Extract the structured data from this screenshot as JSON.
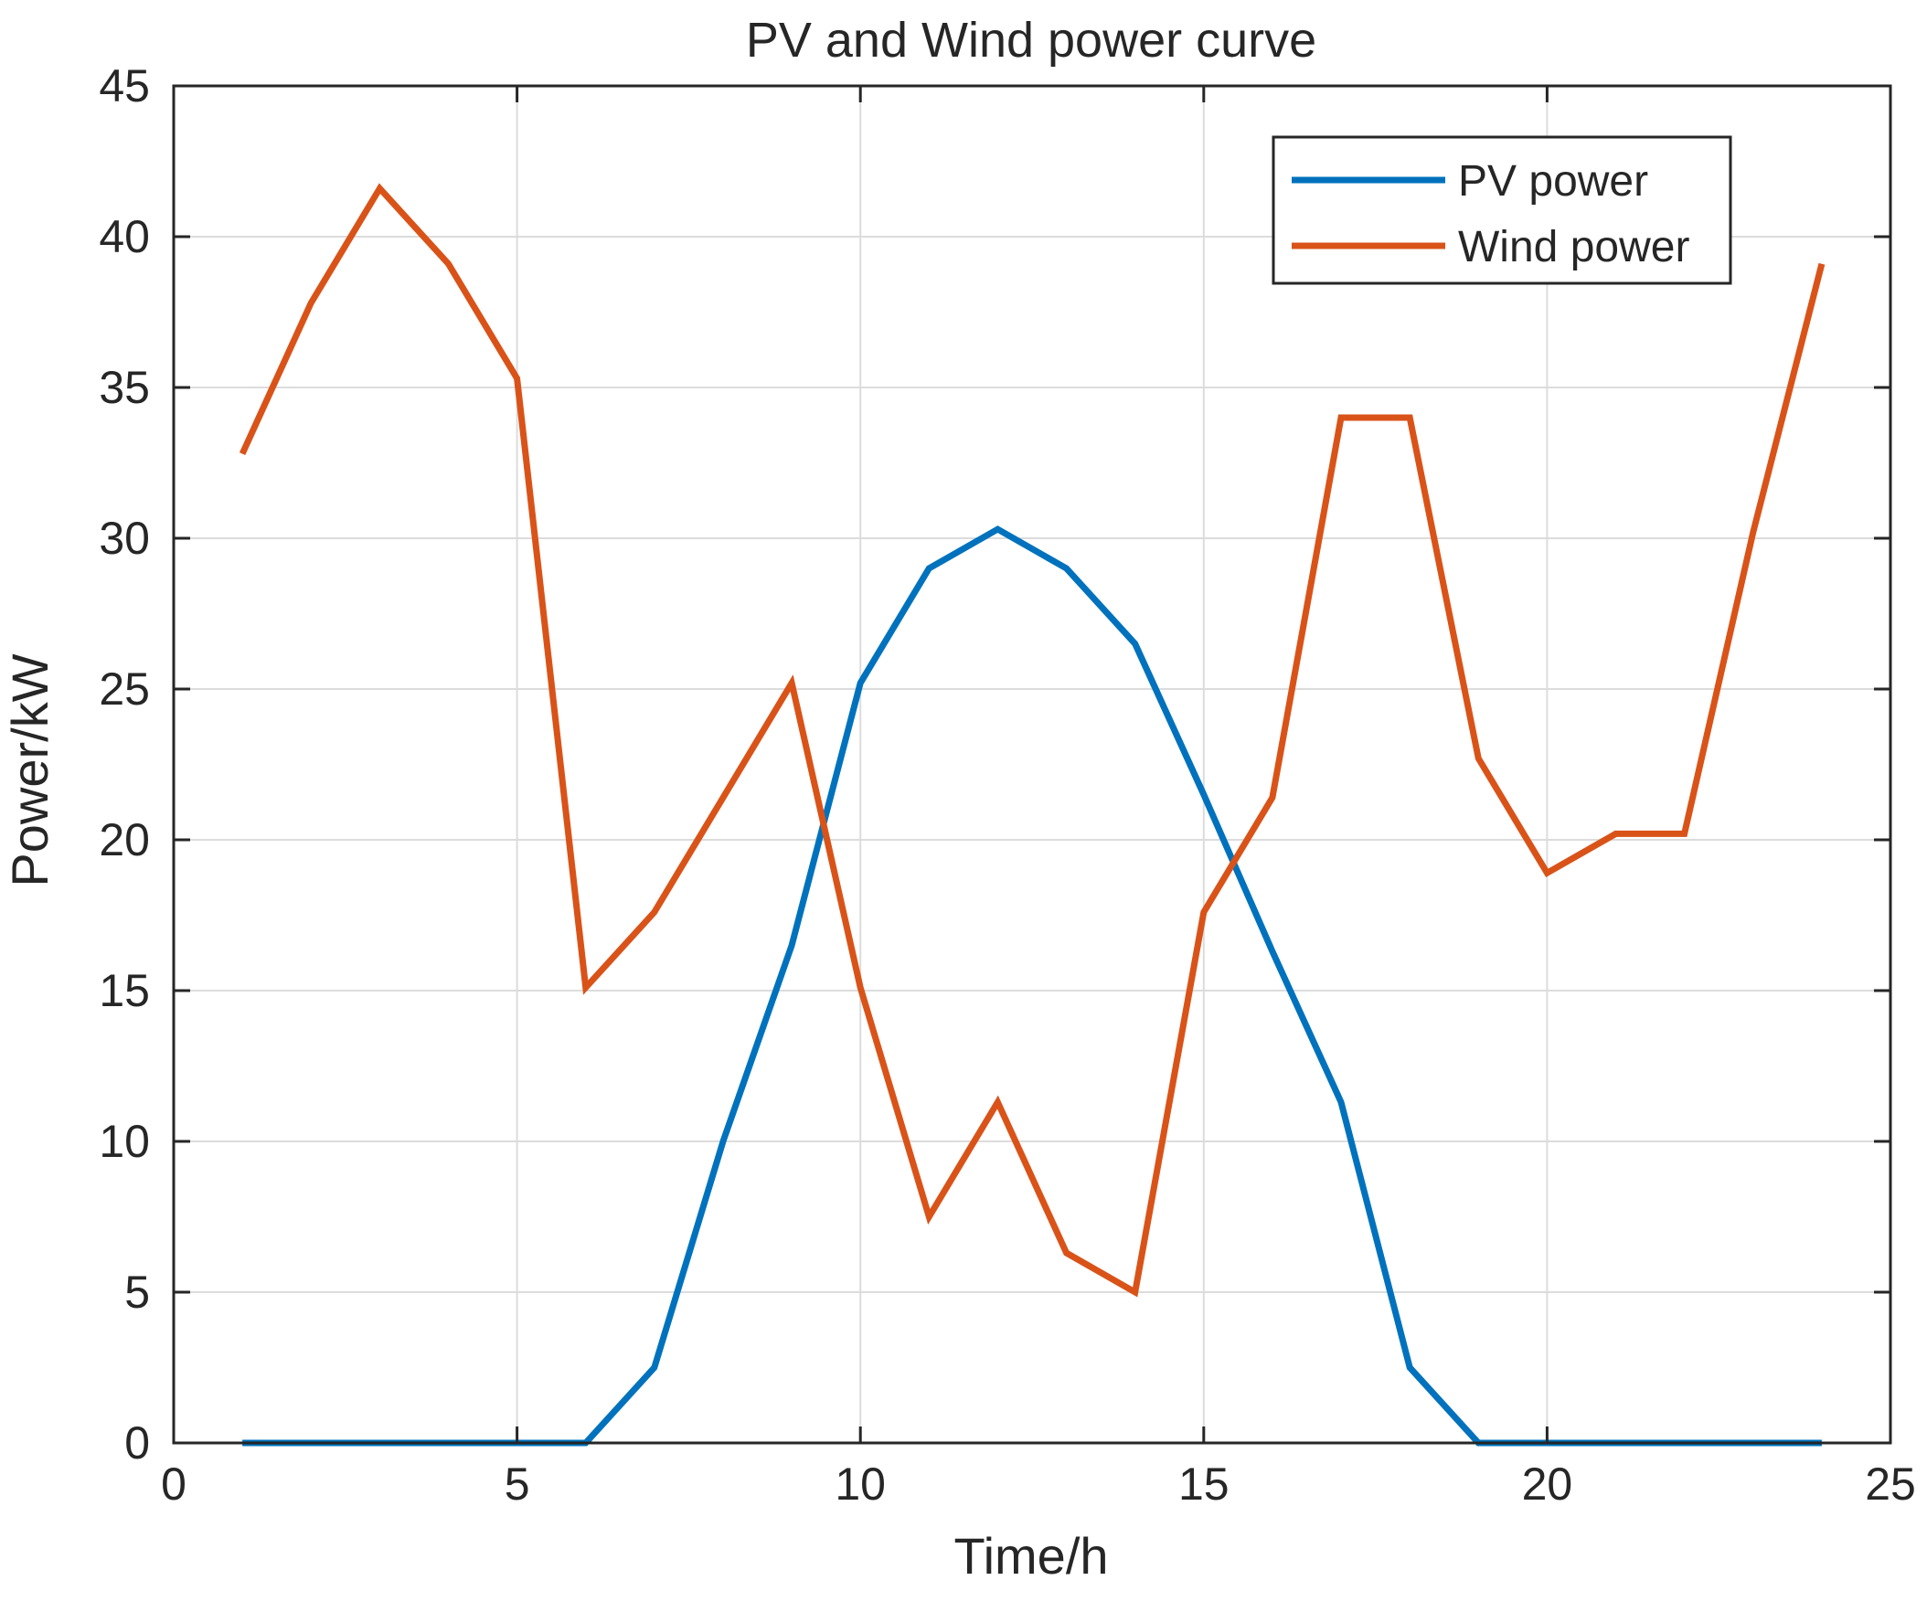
{
  "chart_data": {
    "type": "line",
    "title": "PV and Wind power curve",
    "xlabel": "Time/h",
    "ylabel": "Power/kW",
    "xlim": [
      0,
      25
    ],
    "ylim": [
      0,
      45
    ],
    "xticks": [
      0,
      5,
      10,
      15,
      20,
      25
    ],
    "yticks": [
      0,
      5,
      10,
      15,
      20,
      25,
      30,
      35,
      40,
      45
    ],
    "grid": true,
    "legend_position": "top-right",
    "x": [
      1,
      2,
      3,
      4,
      5,
      6,
      7,
      8,
      9,
      10,
      11,
      12,
      13,
      14,
      15,
      16,
      17,
      18,
      19,
      20,
      21,
      22,
      23,
      24
    ],
    "series": [
      {
        "name": "PV power",
        "color": "#0072BD",
        "values": [
          0,
          0,
          0,
          0,
          0,
          0,
          2.5,
          10,
          16.5,
          25.2,
          29,
          30.3,
          29,
          26.5,
          21.5,
          16.3,
          11.3,
          2.5,
          0,
          0,
          0,
          0,
          0,
          0
        ]
      },
      {
        "name": "Wind power",
        "color": "#D95319",
        "values": [
          32.8,
          37.8,
          41.6,
          39.1,
          35.3,
          15.1,
          17.6,
          21.4,
          25.2,
          15.1,
          7.5,
          11.3,
          6.3,
          5.0,
          17.6,
          21.4,
          34.0,
          34.0,
          22.7,
          18.9,
          20.2,
          20.2,
          30.2,
          39.1
        ]
      }
    ]
  }
}
